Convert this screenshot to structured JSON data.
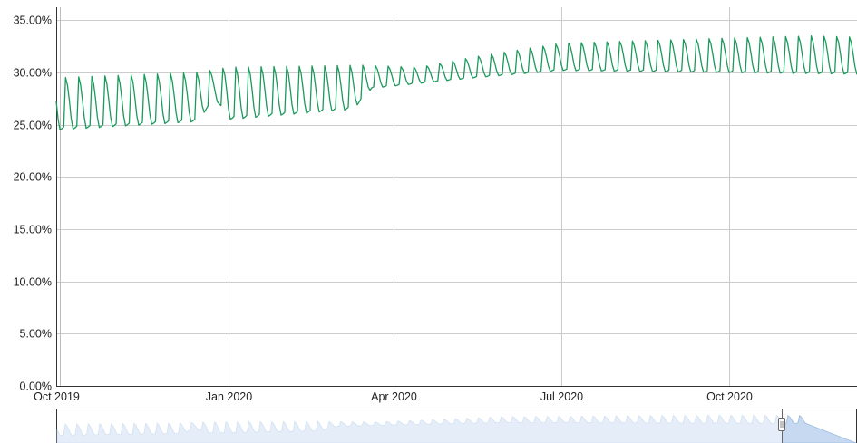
{
  "chart_data": {
    "type": "line",
    "title": "",
    "xlabel": "",
    "ylabel": "",
    "x_range": [
      "2019-10-01",
      "2020-12-31"
    ],
    "ylim": [
      0,
      0.3625
    ],
    "y_tick_labels": [
      "0.00%",
      "5.00%",
      "10.00%",
      "15.00%",
      "20.00%",
      "25.00%",
      "30.00%",
      "35.00%"
    ],
    "y_tick_values": [
      0,
      0.05,
      0.1,
      0.15,
      0.2,
      0.25,
      0.3,
      0.35
    ],
    "x_tick_labels": [
      "Oct 2019",
      "Jan 2020",
      "Apr 2020",
      "Jul 2020",
      "Oct 2020"
    ],
    "x_tick_dates": [
      "2019-10-01",
      "2020-01-01",
      "2020-04-01",
      "2020-07-01",
      "2020-10-01"
    ],
    "grid": true,
    "line_color": "#1a9a5a",
    "series": [
      {
        "name": "",
        "weekly_baseline": [
          [
            "2019-10-01",
            0.245
          ],
          [
            "2019-12-15",
            0.253
          ],
          [
            "2019-12-25",
            0.275
          ],
          [
            "2020-01-01",
            0.255
          ],
          [
            "2020-03-10",
            0.265
          ],
          [
            "2020-03-20",
            0.285
          ],
          [
            "2020-05-15",
            0.295
          ],
          [
            "2020-07-01",
            0.302
          ],
          [
            "2020-12-31",
            0.298
          ]
        ],
        "weekly_peak": [
          [
            "2019-10-01",
            0.295
          ],
          [
            "2019-12-15",
            0.3
          ],
          [
            "2020-01-01",
            0.305
          ],
          [
            "2020-03-15",
            0.307
          ],
          [
            "2020-04-15",
            0.305
          ],
          [
            "2020-05-15",
            0.315
          ],
          [
            "2020-07-01",
            0.328
          ],
          [
            "2020-10-01",
            0.333
          ],
          [
            "2020-11-15",
            0.335
          ],
          [
            "2020-12-31",
            0.333
          ]
        ]
      }
    ]
  },
  "navigator": {
    "fill_color": "#c6d9f0",
    "line_color": "#9bbbe0",
    "handle_color": "#666666"
  }
}
